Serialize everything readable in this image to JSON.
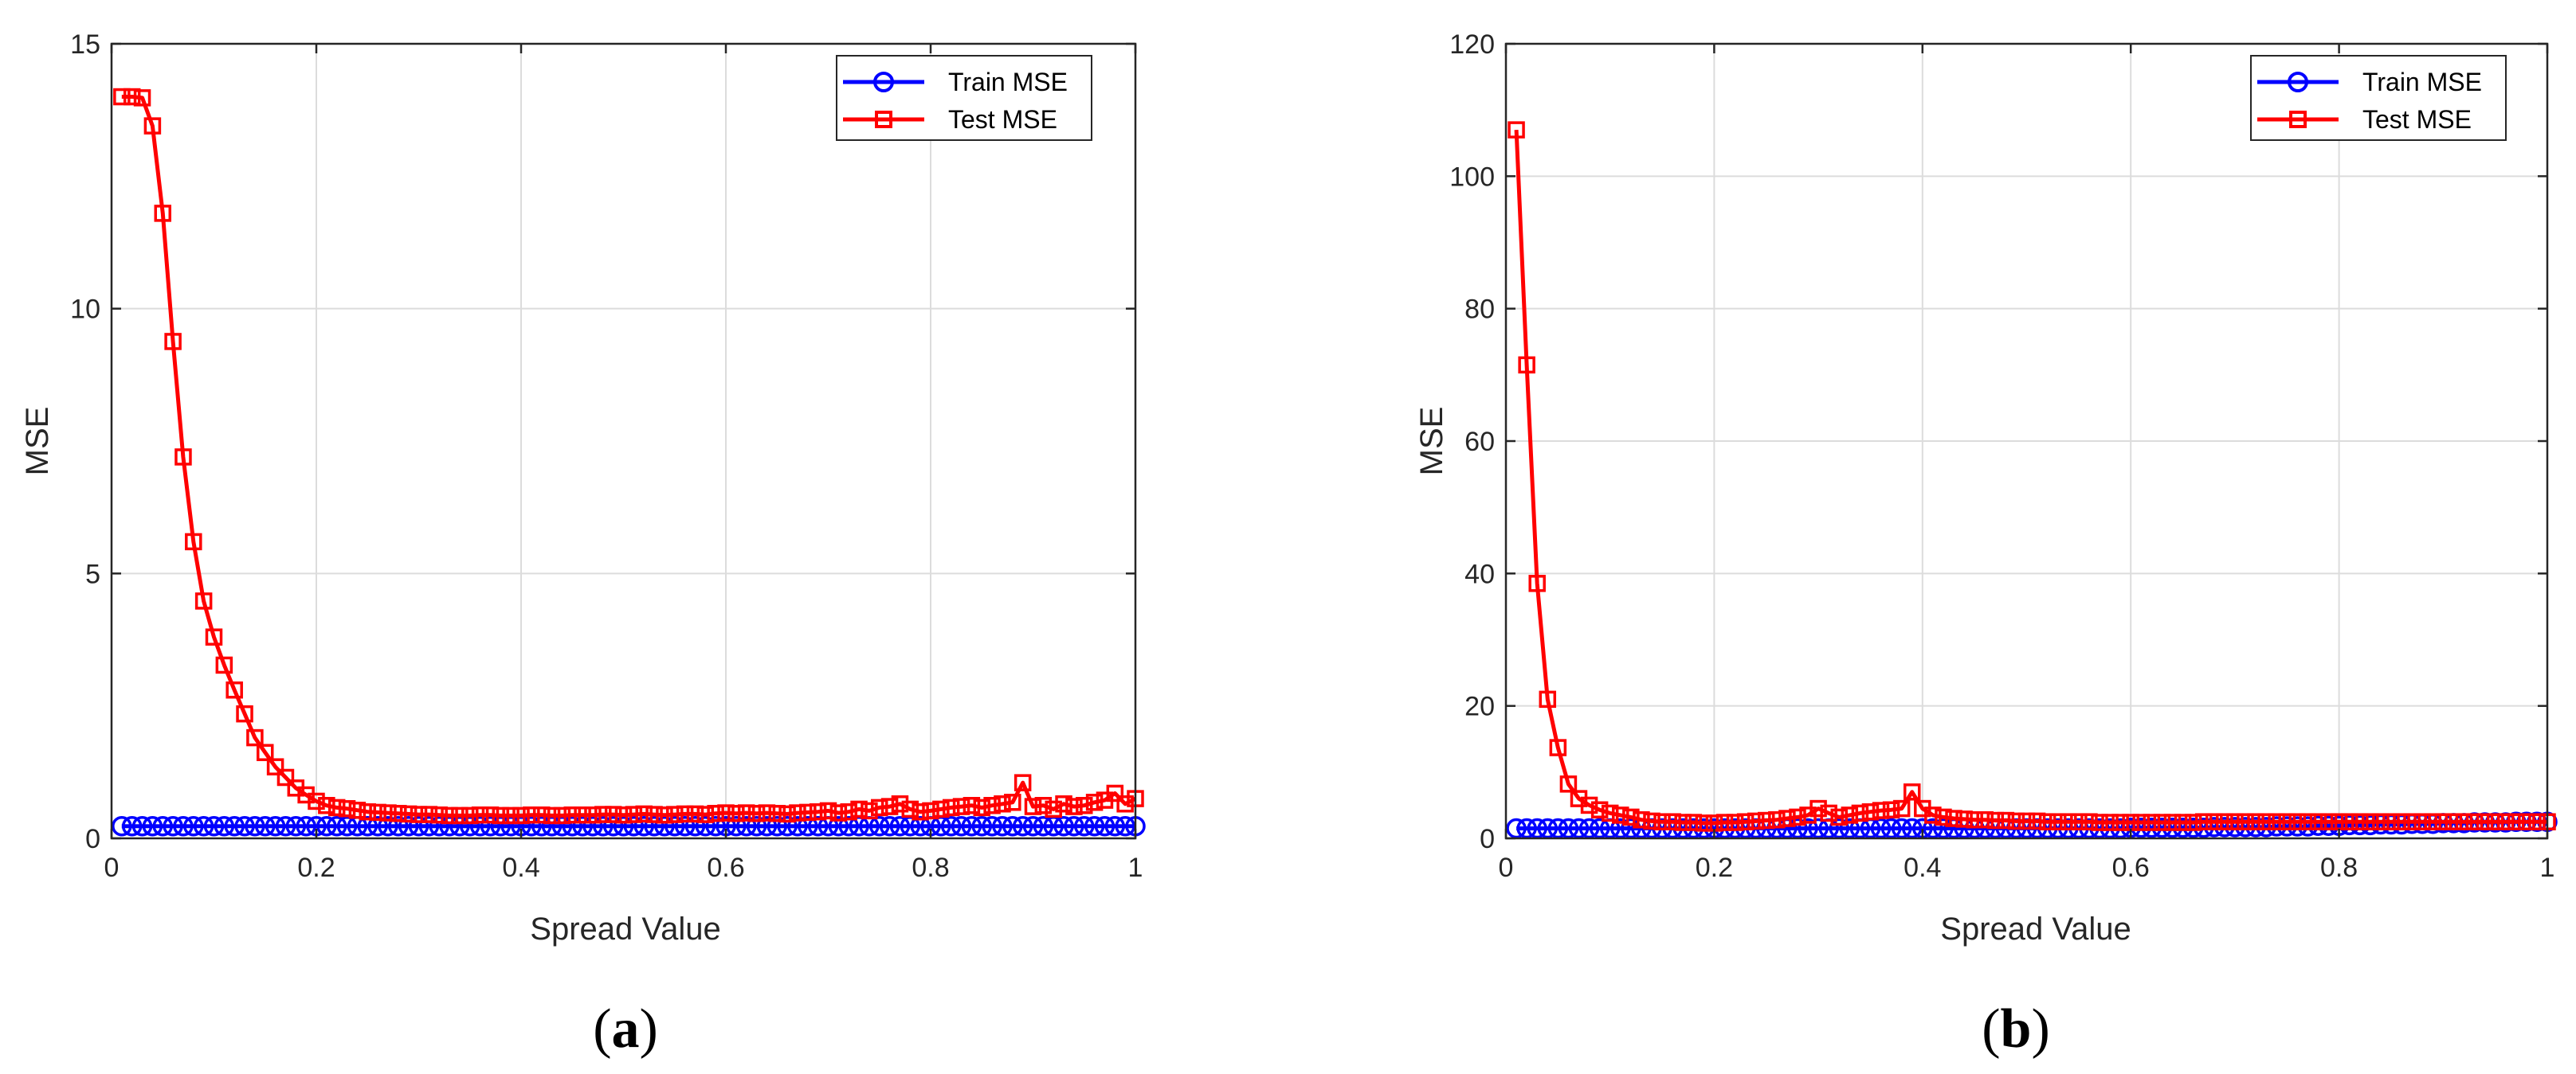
{
  "colors": {
    "train": "#0000ff",
    "test": "#ff0000"
  },
  "chart_data": [
    {
      "type": "line",
      "panel_label": {
        "open": "(",
        "letter": "a",
        "close": ")"
      },
      "xlabel": "Spread Value",
      "ylabel": "MSE",
      "xlim": [
        0,
        1
      ],
      "ylim": [
        0,
        15
      ],
      "xticks": [
        0,
        0.2,
        0.4,
        0.6,
        0.8,
        1
      ],
      "xtick_labels": [
        "0",
        "0.2",
        "0.4",
        "0.6",
        "0.8",
        "1"
      ],
      "yticks": [
        0,
        5,
        10,
        15
      ],
      "ytick_labels": [
        "0",
        "5",
        "10",
        "15"
      ],
      "grid": true,
      "legend": "top-right",
      "x": [
        0.01,
        0.02,
        0.03,
        0.04,
        0.05,
        0.06,
        0.07,
        0.08,
        0.09,
        0.1,
        0.11,
        0.12,
        0.13,
        0.14,
        0.15,
        0.16,
        0.17,
        0.18,
        0.19,
        0.2,
        0.21,
        0.22,
        0.23,
        0.24,
        0.25,
        0.26,
        0.27,
        0.28,
        0.29,
        0.3,
        0.31,
        0.32,
        0.33,
        0.34,
        0.35,
        0.36,
        0.37,
        0.38,
        0.39,
        0.4,
        0.41,
        0.42,
        0.43,
        0.44,
        0.45,
        0.46,
        0.47,
        0.48,
        0.49,
        0.5,
        0.51,
        0.52,
        0.53,
        0.54,
        0.55,
        0.56,
        0.57,
        0.58,
        0.59,
        0.6,
        0.61,
        0.62,
        0.63,
        0.64,
        0.65,
        0.66,
        0.67,
        0.68,
        0.69,
        0.7,
        0.71,
        0.72,
        0.73,
        0.74,
        0.75,
        0.76,
        0.77,
        0.78,
        0.79,
        0.8,
        0.81,
        0.82,
        0.83,
        0.84,
        0.85,
        0.86,
        0.87,
        0.88,
        0.89,
        0.9,
        0.91,
        0.92,
        0.93,
        0.94,
        0.95,
        0.96,
        0.97,
        0.98,
        0.99,
        1.0
      ],
      "series": [
        {
          "name": "Train MSE",
          "marker": "circle",
          "values": [
            0.23,
            0.23,
            0.23,
            0.23,
            0.23,
            0.23,
            0.23,
            0.23,
            0.23,
            0.23,
            0.23,
            0.23,
            0.23,
            0.23,
            0.23,
            0.23,
            0.23,
            0.23,
            0.23,
            0.23,
            0.23,
            0.23,
            0.23,
            0.23,
            0.23,
            0.23,
            0.23,
            0.23,
            0.23,
            0.23,
            0.23,
            0.23,
            0.23,
            0.23,
            0.23,
            0.23,
            0.23,
            0.23,
            0.23,
            0.23,
            0.23,
            0.23,
            0.23,
            0.23,
            0.23,
            0.23,
            0.23,
            0.23,
            0.23,
            0.23,
            0.23,
            0.23,
            0.23,
            0.23,
            0.23,
            0.23,
            0.23,
            0.23,
            0.23,
            0.23,
            0.23,
            0.23,
            0.23,
            0.23,
            0.23,
            0.23,
            0.23,
            0.23,
            0.23,
            0.23,
            0.23,
            0.23,
            0.23,
            0.23,
            0.23,
            0.23,
            0.23,
            0.23,
            0.23,
            0.23,
            0.23,
            0.23,
            0.23,
            0.23,
            0.23,
            0.23,
            0.23,
            0.23,
            0.23,
            0.23,
            0.23,
            0.23,
            0.23,
            0.23,
            0.23,
            0.23,
            0.23,
            0.23,
            0.23,
            0.23
          ]
        },
        {
          "name": "Test MSE",
          "marker": "square",
          "values": [
            14.0,
            14.0,
            13.98,
            13.45,
            11.8,
            9.38,
            7.2,
            5.6,
            4.48,
            3.8,
            3.27,
            2.8,
            2.35,
            1.9,
            1.62,
            1.35,
            1.15,
            0.95,
            0.82,
            0.7,
            0.62,
            0.58,
            0.56,
            0.53,
            0.5,
            0.49,
            0.48,
            0.47,
            0.46,
            0.45,
            0.45,
            0.44,
            0.43,
            0.43,
            0.43,
            0.44,
            0.44,
            0.43,
            0.43,
            0.43,
            0.44,
            0.44,
            0.43,
            0.43,
            0.44,
            0.44,
            0.44,
            0.45,
            0.45,
            0.44,
            0.45,
            0.46,
            0.45,
            0.44,
            0.45,
            0.46,
            0.46,
            0.45,
            0.47,
            0.48,
            0.47,
            0.48,
            0.47,
            0.48,
            0.47,
            0.46,
            0.48,
            0.49,
            0.5,
            0.52,
            0.48,
            0.5,
            0.55,
            0.52,
            0.58,
            0.6,
            0.65,
            0.55,
            0.5,
            0.52,
            0.55,
            0.58,
            0.6,
            0.62,
            0.58,
            0.62,
            0.65,
            0.68,
            1.05,
            0.6,
            0.62,
            0.55,
            0.65,
            0.6,
            0.62,
            0.68,
            0.72,
            0.85,
            0.65,
            0.75
          ]
        }
      ]
    },
    {
      "type": "line",
      "panel_label": {
        "open": "(",
        "letter": "b",
        "close": ")"
      },
      "xlabel": "Spread Value",
      "ylabel": "MSE",
      "xlim": [
        0,
        1
      ],
      "ylim": [
        0,
        120
      ],
      "xticks": [
        0,
        0.2,
        0.4,
        0.6,
        0.8,
        1
      ],
      "xtick_labels": [
        "0",
        "0.2",
        "0.4",
        "0.6",
        "0.8",
        "1"
      ],
      "yticks": [
        0,
        20,
        40,
        60,
        80,
        100,
        120
      ],
      "ytick_labels": [
        "0",
        "20",
        "40",
        "60",
        "80",
        "100",
        "120"
      ],
      "grid": true,
      "legend": "top-right",
      "x": [
        0.01,
        0.02,
        0.03,
        0.04,
        0.05,
        0.06,
        0.07,
        0.08,
        0.09,
        0.1,
        0.11,
        0.12,
        0.13,
        0.14,
        0.15,
        0.16,
        0.17,
        0.18,
        0.19,
        0.2,
        0.21,
        0.22,
        0.23,
        0.24,
        0.25,
        0.26,
        0.27,
        0.28,
        0.29,
        0.3,
        0.31,
        0.32,
        0.33,
        0.34,
        0.35,
        0.36,
        0.37,
        0.38,
        0.39,
        0.4,
        0.41,
        0.42,
        0.43,
        0.44,
        0.45,
        0.46,
        0.47,
        0.48,
        0.49,
        0.5,
        0.51,
        0.52,
        0.53,
        0.54,
        0.55,
        0.56,
        0.57,
        0.58,
        0.59,
        0.6,
        0.61,
        0.62,
        0.63,
        0.64,
        0.65,
        0.66,
        0.67,
        0.68,
        0.69,
        0.7,
        0.71,
        0.72,
        0.73,
        0.74,
        0.75,
        0.76,
        0.77,
        0.78,
        0.79,
        0.8,
        0.81,
        0.82,
        0.83,
        0.84,
        0.85,
        0.86,
        0.87,
        0.88,
        0.89,
        0.9,
        0.91,
        0.92,
        0.93,
        0.94,
        0.95,
        0.96,
        0.97,
        0.98,
        0.99,
        1.0
      ],
      "series": [
        {
          "name": "Train MSE",
          "marker": "circle",
          "values": [
            1.5,
            1.5,
            1.5,
            1.5,
            1.5,
            1.5,
            1.5,
            1.5,
            1.5,
            1.5,
            1.5,
            1.5,
            1.5,
            1.5,
            1.5,
            1.5,
            1.5,
            1.5,
            1.5,
            1.5,
            1.5,
            1.5,
            1.5,
            1.5,
            1.5,
            1.5,
            1.5,
            1.5,
            1.5,
            1.5,
            1.5,
            1.5,
            1.5,
            1.5,
            1.5,
            1.5,
            1.5,
            1.5,
            1.5,
            1.5,
            1.5,
            1.5,
            1.5,
            1.5,
            1.5,
            1.5,
            1.5,
            1.5,
            1.5,
            1.5,
            1.5,
            1.5,
            1.5,
            1.5,
            1.5,
            1.5,
            1.5,
            1.5,
            1.5,
            1.6,
            1.6,
            1.6,
            1.6,
            1.6,
            1.6,
            1.6,
            1.6,
            1.7,
            1.7,
            1.7,
            1.7,
            1.7,
            1.7,
            1.8,
            1.8,
            1.8,
            1.8,
            1.9,
            1.9,
            1.9,
            2.0,
            2.0,
            2.0,
            2.1,
            2.1,
            2.1,
            2.2,
            2.2,
            2.2,
            2.3,
            2.3,
            2.3,
            2.4,
            2.4,
            2.4,
            2.4,
            2.5,
            2.5,
            2.5,
            2.5
          ]
        },
        {
          "name": "Test MSE",
          "marker": "square",
          "values": [
            107,
            71.5,
            38.5,
            21,
            13.7,
            8.2,
            6,
            5,
            4.3,
            3.8,
            3.5,
            3.2,
            2.8,
            2.6,
            2.5,
            2.5,
            2.4,
            2.4,
            2.3,
            2.3,
            2.4,
            2.4,
            2.5,
            2.6,
            2.7,
            2.8,
            3,
            3.2,
            3.5,
            4.5,
            3.8,
            3.2,
            3.5,
            3.8,
            4,
            4.2,
            4.3,
            4.5,
            7,
            4.5,
            3.5,
            3.2,
            3,
            2.9,
            2.8,
            2.8,
            2.7,
            2.7,
            2.6,
            2.6,
            2.6,
            2.5,
            2.5,
            2.5,
            2.5,
            2.5,
            2.4,
            2.4,
            2.4,
            2.4,
            2.4,
            2.4,
            2.4,
            2.4,
            2.4,
            2.4,
            2.5,
            2.5,
            2.5,
            2.5,
            2.5,
            2.5,
            2.5,
            2.5,
            2.5,
            2.5,
            2.5,
            2.5,
            2.5,
            2.5,
            2.5,
            2.5,
            2.5,
            2.5,
            2.5,
            2.5,
            2.5,
            2.5,
            2.5,
            2.5,
            2.5,
            2.5,
            2.5,
            2.5,
            2.5,
            2.5,
            2.5,
            2.5,
            2.5,
            2.5
          ]
        }
      ]
    }
  ]
}
